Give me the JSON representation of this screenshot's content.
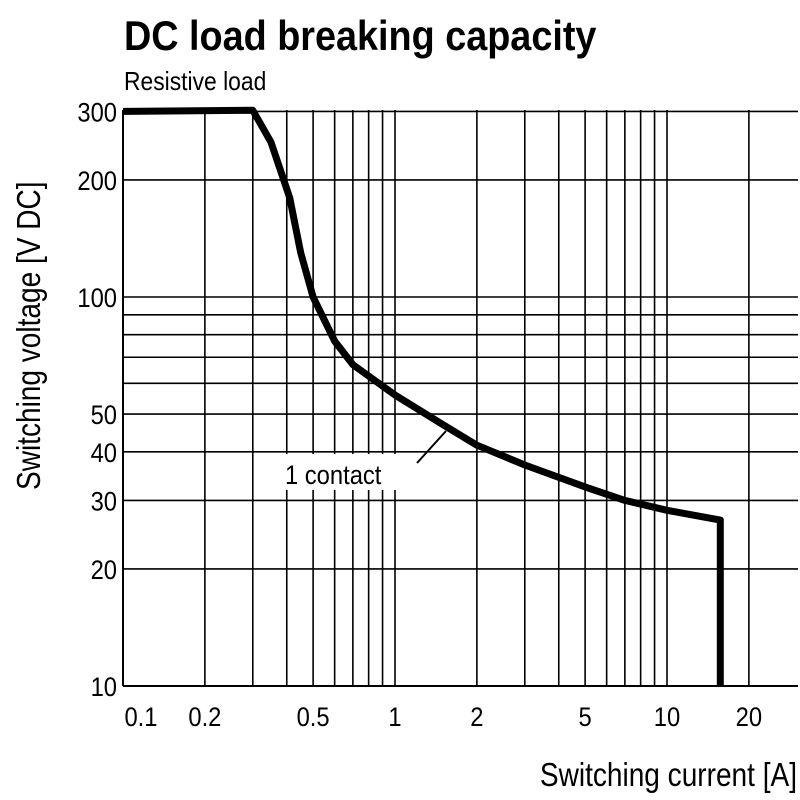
{
  "chart_data": {
    "type": "line",
    "title": "DC load breaking capacity",
    "subtitle": "Resistive load",
    "xlabel": "Switching current [A]",
    "ylabel": "Switching voltage [V DC]",
    "x_scale": "log",
    "y_scale": "log",
    "xlim": [
      0.1,
      30
    ],
    "ylim": [
      10,
      300
    ],
    "grid": true,
    "x_ticks": [
      0.1,
      0.2,
      0.5,
      1,
      2,
      5,
      10,
      20
    ],
    "x_tick_labels": [
      "0.1",
      "0.2",
      "0.5",
      "1",
      "2",
      "5",
      "10",
      "20"
    ],
    "y_ticks": [
      300,
      200,
      100,
      50,
      40,
      30,
      20,
      10
    ],
    "y_tick_labels": [
      "300",
      "200",
      "100",
      "50",
      "40",
      "30",
      "20",
      "10"
    ],
    "x_gridlines": [
      0.2,
      0.3,
      0.4,
      0.5,
      0.6,
      0.7,
      0.8,
      0.9,
      1,
      2,
      3,
      4,
      5,
      6,
      7,
      8,
      9,
      10,
      20
    ],
    "y_gridlines": [
      10,
      20,
      30,
      40,
      50,
      60,
      70,
      80,
      90,
      100,
      200,
      300
    ],
    "series": [
      {
        "name": "1 contact",
        "color": "#000000",
        "x": [
          0.1,
          0.3,
          0.35,
          0.41,
          0.45,
          0.5,
          0.6,
          0.7,
          1,
          1.5,
          2,
          3,
          5,
          7,
          10,
          15.7,
          15.7
        ],
        "y": [
          300,
          302,
          250,
          180,
          130,
          100,
          77,
          67,
          56,
          47,
          41.6,
          37,
          32.5,
          30,
          28.3,
          26.7,
          10
        ]
      }
    ],
    "annotations": [
      {
        "text": "1 contact",
        "points_to_x": 1.3,
        "points_to_y": 50
      }
    ]
  }
}
